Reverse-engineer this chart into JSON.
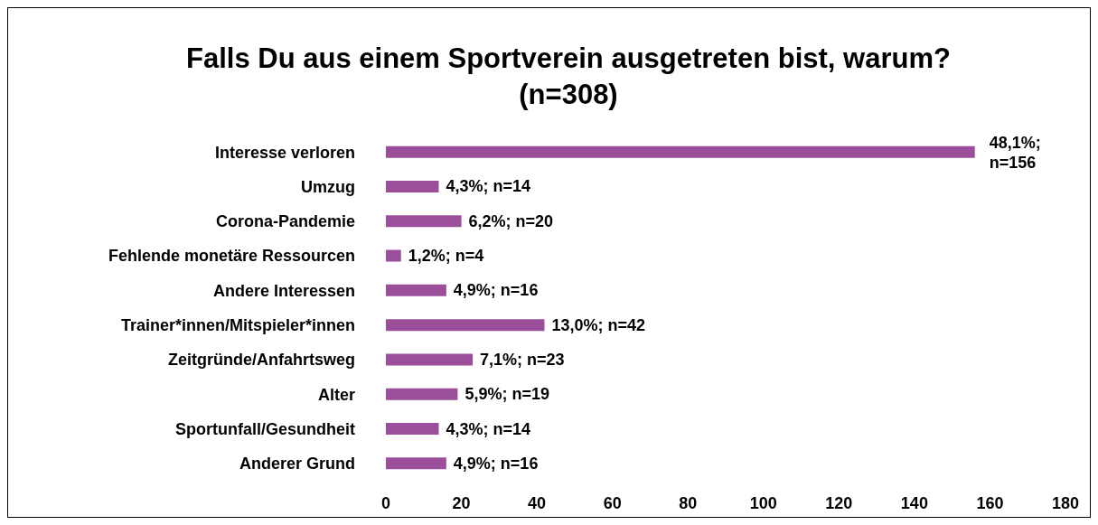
{
  "chart_data": {
    "type": "bar",
    "orientation": "horizontal",
    "title": "Falls Du aus einem Sportverein ausgetreten bist, warum? (n=308)",
    "categories": [
      "Interesse verloren",
      "Umzug",
      "Corona-Pandemie",
      "Fehlende monetäre Ressourcen",
      "Andere Interessen",
      "Trainer*innen/Mitspieler*innen",
      "Zeitgründe/Anfahrtsweg",
      "Alter",
      "Sportunfall/Gesundheit",
      "Anderer Grund"
    ],
    "values": [
      156,
      14,
      20,
      4,
      16,
      42,
      23,
      19,
      14,
      16
    ],
    "value_labels": [
      "48,1%; n=156",
      "4,3%; n=14",
      "6,2%; n=20",
      "1,2%; n=4",
      "4,9%; n=16",
      "13,0%; n=42",
      "7,1%; n=23",
      "5,9%; n=19",
      "4,3%; n=14",
      "4,9%; n=16"
    ],
    "color": "#9b4f9b",
    "xlim": [
      0,
      180
    ],
    "xticks": [
      0,
      20,
      40,
      60,
      80,
      100,
      120,
      140,
      160,
      180
    ],
    "grid": false,
    "legend": false
  }
}
